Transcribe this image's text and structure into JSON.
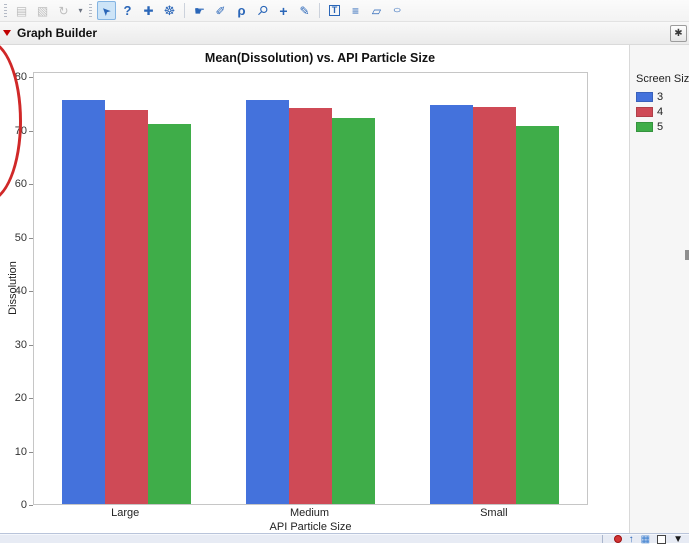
{
  "toolbar": {
    "groups": [
      {
        "lead": "dots",
        "icons": [
          {
            "name": "save",
            "glyph": "▤",
            "disabled": true
          },
          {
            "name": "paste",
            "glyph": "▧",
            "disabled": true
          },
          {
            "name": "undo",
            "glyph": "↻",
            "disabled": true
          },
          {
            "name": "toolbar-overflow",
            "glyph": "▾",
            "small": true
          }
        ]
      },
      {
        "lead": "dots",
        "icons": [
          {
            "name": "cursor-tool",
            "glyph": "➤",
            "selected": true
          },
          {
            "name": "help-tool",
            "glyph": "?"
          },
          {
            "name": "move-tool",
            "glyph": "✚"
          },
          {
            "name": "wheel-tool",
            "glyph": "☸"
          }
        ]
      },
      {
        "lead": "line",
        "icons": [
          {
            "name": "hand-tool",
            "glyph": "☛"
          },
          {
            "name": "brush-tool",
            "glyph": "✐"
          },
          {
            "name": "lasso-tool",
            "glyph": "ρ"
          },
          {
            "name": "magnifier-tool",
            "glyph": "⚲"
          },
          {
            "name": "crosshair-tool",
            "glyph": "+"
          },
          {
            "name": "pencil-tool",
            "glyph": "✎"
          }
        ]
      },
      {
        "lead": "line",
        "icons": [
          {
            "name": "textbox-tool",
            "glyph": "T"
          },
          {
            "name": "lines-tool",
            "glyph": "≡"
          },
          {
            "name": "polygon-tool",
            "glyph": "▱"
          },
          {
            "name": "oval-tool",
            "glyph": "○"
          }
        ]
      }
    ]
  },
  "header": {
    "title": "Graph Builder",
    "pin_glyph": "✱"
  },
  "legend": {
    "title": "Screen Size"
  },
  "chart_data": {
    "type": "bar",
    "title": "Mean(Dissolution) vs. API Particle Size",
    "xlabel": "API Particle Size",
    "ylabel": "Dissolution",
    "categories": [
      "Large",
      "Medium",
      "Small"
    ],
    "series": [
      {
        "name": "3",
        "color": "#4472DC",
        "values": [
          75.6,
          75.6,
          74.6
        ]
      },
      {
        "name": "4",
        "color": "#CF4A56",
        "values": [
          73.6,
          74.0,
          74.3
        ]
      },
      {
        "name": "5",
        "color": "#3FAD49",
        "values": [
          71.0,
          72.1,
          70.6
        ]
      }
    ],
    "ylim": [
      0,
      80
    ],
    "yticks": [
      0,
      10,
      20,
      30,
      40,
      50,
      60,
      70,
      80
    ],
    "legend_title": "Screen Size",
    "legend_position": "right",
    "grid": false
  },
  "status_icons": [
    {
      "name": "alert-dot",
      "kind": "dot"
    },
    {
      "name": "up-arrow",
      "kind": "glyph",
      "glyph": "↑",
      "color": "#2a66b8"
    },
    {
      "name": "data-table",
      "kind": "glyph",
      "glyph": "▦",
      "color": "#3b7fd0"
    },
    {
      "name": "checkbox",
      "kind": "check"
    },
    {
      "name": "dropdown-caret",
      "kind": "glyph",
      "glyph": "▼",
      "color": "#1a1a1a"
    }
  ]
}
